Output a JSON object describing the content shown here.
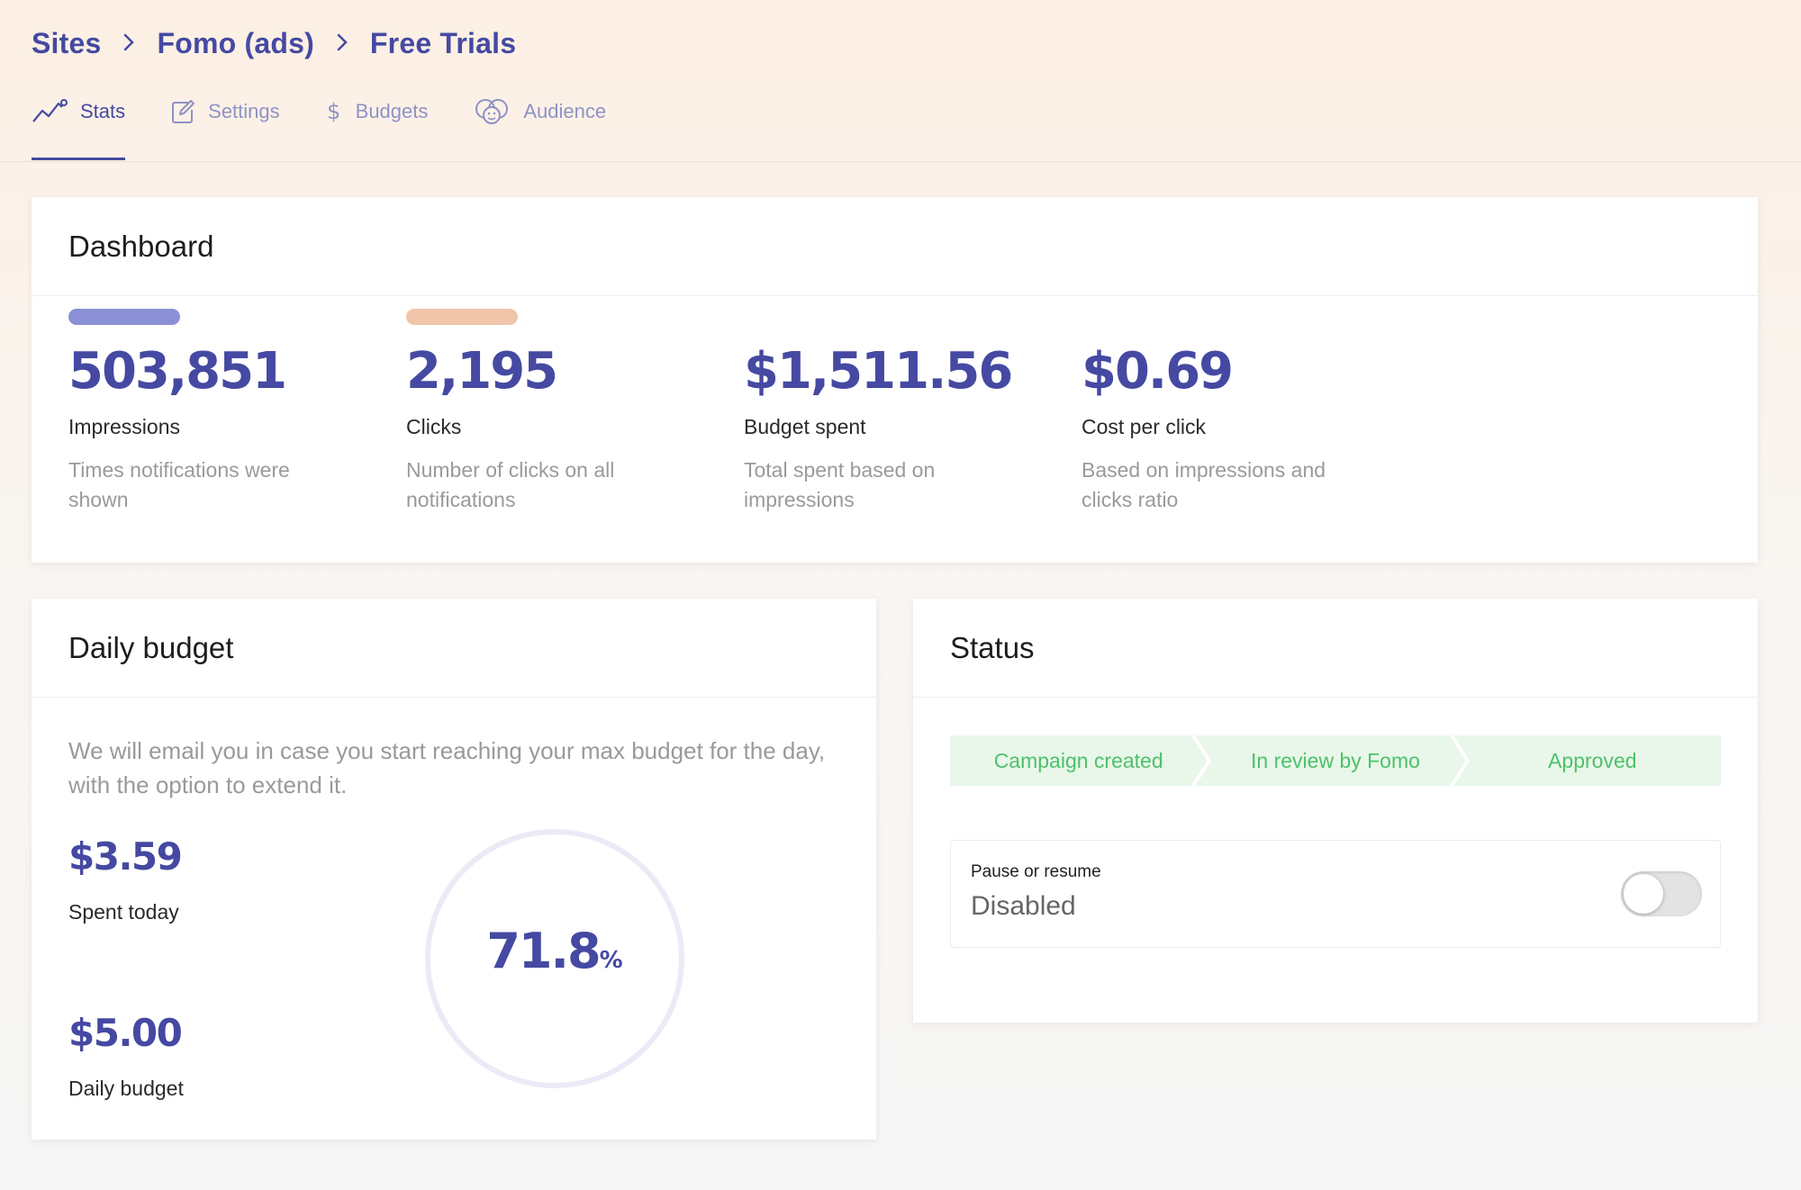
{
  "breadcrumb": [
    "Sites",
    "Fomo (ads)",
    "Free Trials"
  ],
  "tabs": [
    {
      "label": "Stats",
      "icon": "trend-line-icon",
      "active": true
    },
    {
      "label": "Settings",
      "icon": "edit-icon",
      "active": false
    },
    {
      "label": "Budgets",
      "icon": "dollar-icon",
      "active": false
    },
    {
      "label": "Audience",
      "icon": "faces-icon",
      "active": false
    }
  ],
  "dashboard": {
    "title": "Dashboard",
    "metrics": [
      {
        "value": "503,851",
        "label": "Impressions",
        "desc": "Times notifications were shown",
        "color": "#8b8fd6"
      },
      {
        "value": "2,195",
        "label": "Clicks",
        "desc": "Number of clicks on all notifications",
        "color": "#f0c6aa"
      },
      {
        "value": "$1,511.56",
        "label": "Budget spent",
        "desc": "Total spent based on impressions"
      },
      {
        "value": "$0.69",
        "label": "Cost per click",
        "desc": "Based on impressions and clicks ratio"
      }
    ]
  },
  "daily_budget": {
    "title": "Daily budget",
    "desc": "We will email you in case you start reaching your max budget for the day, with the option to extend it.",
    "spent_value": "$3.59",
    "spent_label": "Spent today",
    "budget_value": "$5.00",
    "budget_label": "Daily budget",
    "percent": "71.8",
    "percent_sign": "%"
  },
  "status": {
    "title": "Status",
    "steps": [
      "Campaign created",
      "In review by Fomo",
      "Approved"
    ],
    "toggle_label": "Pause or resume",
    "toggle_value": "Disabled"
  },
  "colors": {
    "accent": "#4549a2",
    "success": "#4fc06a",
    "success_bg": "#e8f7ea"
  }
}
